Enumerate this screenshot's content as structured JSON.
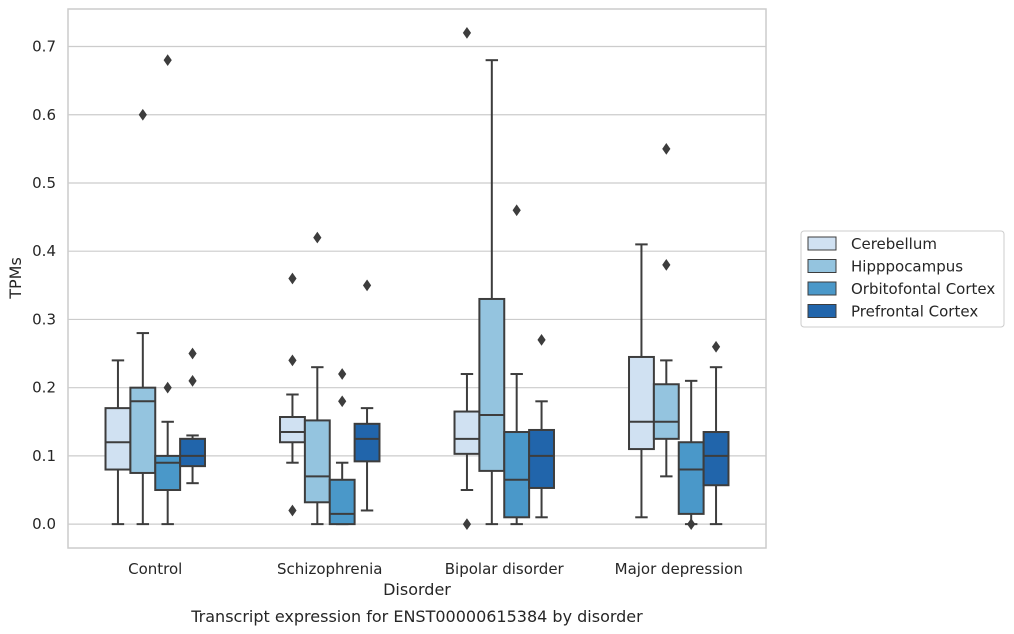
{
  "chart_data": {
    "type": "box",
    "title": "",
    "caption": "Transcript expression for ENST00000615384 by disorder",
    "xlabel": "Disorder",
    "ylabel": "TPMs",
    "ylim": [
      -0.035,
      0.755
    ],
    "yticks": [
      0.0,
      0.1,
      0.2,
      0.3,
      0.4,
      0.5,
      0.6,
      0.7
    ],
    "ytick_labels": [
      "0.0",
      "0.1",
      "0.2",
      "0.3",
      "0.4",
      "0.5",
      "0.6",
      "0.7"
    ],
    "grid": "horizontal",
    "legend_position": "outside-right",
    "categories": [
      "Control",
      "Schizophrenia",
      "Bipolar disorder",
      "Major depression"
    ],
    "series": [
      {
        "name": "Cerebellum",
        "color": "#d0e1f2",
        "boxes": [
          {
            "whisker_low": 0.0,
            "q1": 0.08,
            "median": 0.12,
            "q3": 0.17,
            "whisker_high": 0.24,
            "outliers": []
          },
          {
            "whisker_low": 0.09,
            "q1": 0.12,
            "median": 0.135,
            "q3": 0.157,
            "whisker_high": 0.19,
            "outliers": [
              0.02,
              0.24,
              0.36
            ]
          },
          {
            "whisker_low": 0.05,
            "q1": 0.103,
            "median": 0.125,
            "q3": 0.165,
            "whisker_high": 0.22,
            "outliers": [
              0.0,
              0.72
            ]
          },
          {
            "whisker_low": 0.01,
            "q1": 0.11,
            "median": 0.15,
            "q3": 0.245,
            "whisker_high": 0.41,
            "outliers": []
          }
        ]
      },
      {
        "name": "Hipppocampus",
        "color": "#94c4df",
        "boxes": [
          {
            "whisker_low": 0.0,
            "q1": 0.075,
            "median": 0.18,
            "q3": 0.2,
            "whisker_high": 0.28,
            "outliers": [
              0.6
            ]
          },
          {
            "whisker_low": 0.0,
            "q1": 0.032,
            "median": 0.07,
            "q3": 0.152,
            "whisker_high": 0.23,
            "outliers": [
              0.42
            ]
          },
          {
            "whisker_low": 0.0,
            "q1": 0.078,
            "median": 0.16,
            "q3": 0.33,
            "whisker_high": 0.68,
            "outliers": []
          },
          {
            "whisker_low": 0.07,
            "q1": 0.125,
            "median": 0.15,
            "q3": 0.205,
            "whisker_high": 0.24,
            "outliers": [
              0.38,
              0.55
            ]
          }
        ]
      },
      {
        "name": "Orbitofontal Cortex",
        "color": "#4a98c9",
        "boxes": [
          {
            "whisker_low": 0.0,
            "q1": 0.05,
            "median": 0.09,
            "q3": 0.1,
            "whisker_high": 0.15,
            "outliers": [
              0.2,
              0.68
            ]
          },
          {
            "whisker_low": 0.0,
            "q1": 0.0,
            "median": 0.015,
            "q3": 0.065,
            "whisker_high": 0.09,
            "outliers": [
              0.18,
              0.22
            ]
          },
          {
            "whisker_low": 0.0,
            "q1": 0.01,
            "median": 0.065,
            "q3": 0.135,
            "whisker_high": 0.22,
            "outliers": [
              0.46
            ]
          },
          {
            "whisker_low": 0.0,
            "q1": 0.015,
            "median": 0.08,
            "q3": 0.12,
            "whisker_high": 0.21,
            "outliers": [
              0.0
            ]
          }
        ]
      },
      {
        "name": "Prefrontal Cortex",
        "color": "#2165ab",
        "boxes": [
          {
            "whisker_low": 0.06,
            "q1": 0.085,
            "median": 0.1,
            "q3": 0.125,
            "whisker_high": 0.13,
            "outliers": [
              0.21,
              0.25
            ]
          },
          {
            "whisker_low": 0.02,
            "q1": 0.092,
            "median": 0.125,
            "q3": 0.147,
            "whisker_high": 0.17,
            "outliers": [
              0.35
            ]
          },
          {
            "whisker_low": 0.01,
            "q1": 0.053,
            "median": 0.1,
            "q3": 0.138,
            "whisker_high": 0.18,
            "outliers": [
              0.27
            ]
          },
          {
            "whisker_low": 0.0,
            "q1": 0.057,
            "median": 0.1,
            "q3": 0.135,
            "whisker_high": 0.23,
            "outliers": [
              0.26
            ]
          }
        ]
      }
    ]
  }
}
